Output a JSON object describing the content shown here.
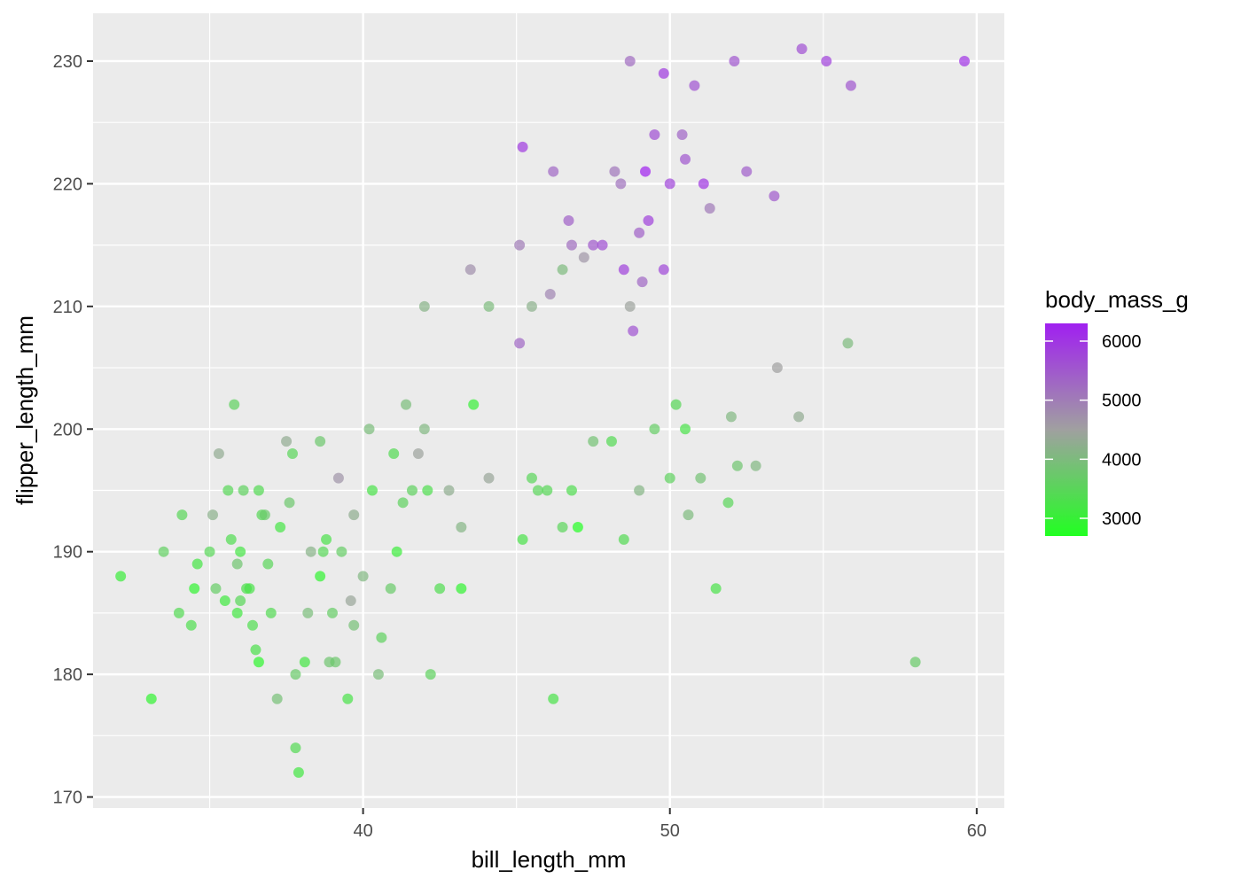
{
  "chart_data": {
    "type": "scatter",
    "xlabel": "bill_length_mm",
    "ylabel": "flipper_length_mm",
    "xlim": [
      31.2,
      60.9
    ],
    "ylim": [
      169.1,
      233.9
    ],
    "x_ticks": [
      40,
      50,
      60
    ],
    "y_ticks": [
      170,
      180,
      190,
      200,
      210,
      220,
      230
    ],
    "x_tick_labels": [
      "40",
      "50",
      "60"
    ],
    "y_tick_labels": [
      "170",
      "180",
      "190",
      "200",
      "210",
      "220",
      "230"
    ],
    "grid": true,
    "legend": {
      "title": "body_mass_g",
      "placement": "right",
      "type": "colorbar",
      "ticks": [
        3000,
        4000,
        5000,
        6000
      ],
      "tick_labels": [
        "3000",
        "4000",
        "5000",
        "6000"
      ],
      "range": [
        2700,
        6300
      ],
      "low_color": "#22ff22",
      "mid_color": "#a0a0a0",
      "high_color": "#a020f0"
    },
    "colors": {
      "panel_background": "#ebebeb",
      "grid": "#ffffff",
      "point_opacity": 0.7
    },
    "points": [
      [
        32.1,
        188,
        3050
      ],
      [
        33.1,
        178,
        2900
      ],
      [
        33.5,
        190,
        3600
      ],
      [
        34,
        185,
        3400
      ],
      [
        34.1,
        193,
        3475
      ],
      [
        34.4,
        184,
        3325
      ],
      [
        34.5,
        187,
        2900
      ],
      [
        34.6,
        189,
        3200
      ],
      [
        35,
        190,
        3450
      ],
      [
        35.1,
        193,
        4200
      ],
      [
        35.2,
        187,
        3650
      ],
      [
        35.3,
        198,
        4300
      ],
      [
        35.5,
        186,
        3100
      ],
      [
        35.6,
        195,
        3450
      ],
      [
        35.7,
        191,
        3350
      ],
      [
        35.8,
        202,
        3550
      ],
      [
        35.9,
        189,
        3800
      ],
      [
        35.9,
        185,
        3150
      ],
      [
        36,
        186,
        3450
      ],
      [
        36,
        190,
        3200
      ],
      [
        36.1,
        195,
        3550
      ],
      [
        36.2,
        187,
        3300
      ],
      [
        36.3,
        187,
        3250
      ],
      [
        36.4,
        184,
        3325
      ],
      [
        36.5,
        182,
        3300
      ],
      [
        36.6,
        181,
        2850
      ],
      [
        36.6,
        195,
        3400
      ],
      [
        36.7,
        193,
        3450
      ],
      [
        36.8,
        193,
        3700
      ],
      [
        36.9,
        189,
        3500
      ],
      [
        37,
        185,
        3400
      ],
      [
        37.2,
        178,
        3900
      ],
      [
        37.3,
        192,
        3200
      ],
      [
        37.5,
        199,
        4300
      ],
      [
        37.6,
        194,
        3750
      ],
      [
        37.7,
        198,
        3500
      ],
      [
        37.8,
        174,
        3400
      ],
      [
        37.8,
        180,
        3700
      ],
      [
        37.9,
        172,
        3150
      ],
      [
        38.1,
        181,
        3175
      ],
      [
        38.2,
        185,
        3950
      ],
      [
        38.3,
        190,
        4150
      ],
      [
        38.6,
        188,
        2900
      ],
      [
        38.6,
        199,
        3750
      ],
      [
        38.7,
        190,
        3450
      ],
      [
        38.8,
        191,
        3275
      ],
      [
        38.9,
        181,
        3800
      ],
      [
        39,
        185,
        3650
      ],
      [
        39.1,
        181,
        3750
      ],
      [
        39.2,
        196,
        4675
      ],
      [
        39.3,
        190,
        3650
      ],
      [
        39.5,
        178,
        3250
      ],
      [
        39.6,
        186,
        4400
      ],
      [
        39.7,
        184,
        3900
      ],
      [
        39.7,
        193,
        4250
      ],
      [
        40,
        188,
        4050
      ],
      [
        40.2,
        200,
        3975
      ],
      [
        40.3,
        195,
        3250
      ],
      [
        40.5,
        180,
        3950
      ],
      [
        40.6,
        183,
        3550
      ],
      [
        40.9,
        187,
        3700
      ],
      [
        41,
        198,
        3400
      ],
      [
        41.1,
        190,
        3050
      ],
      [
        41.3,
        194,
        3550
      ],
      [
        41.4,
        202,
        3950
      ],
      [
        41.6,
        195,
        3550
      ],
      [
        41.8,
        198,
        4450
      ],
      [
        42,
        200,
        4050
      ],
      [
        42.1,
        195,
        3325
      ],
      [
        42.2,
        180,
        3550
      ],
      [
        42.5,
        187,
        3350
      ],
      [
        42.8,
        195,
        4250
      ],
      [
        43.2,
        187,
        2900
      ],
      [
        43.6,
        202,
        3000
      ],
      [
        44.1,
        196,
        4400
      ],
      [
        45.2,
        191,
        3250
      ],
      [
        45.5,
        196,
        3500
      ],
      [
        45.7,
        195,
        3500
      ],
      [
        46,
        195,
        3450
      ],
      [
        46.2,
        178,
        3250
      ],
      [
        46.5,
        192,
        3500
      ],
      [
        46.8,
        195,
        3350
      ],
      [
        47,
        192,
        2700
      ],
      [
        47.5,
        199,
        3850
      ],
      [
        48.1,
        199,
        3400
      ],
      [
        48.5,
        191,
        3400
      ],
      [
        49,
        195,
        4100
      ],
      [
        49.5,
        200,
        3650
      ],
      [
        50,
        196,
        3550
      ],
      [
        50.2,
        202,
        3450
      ],
      [
        50.5,
        200,
        3250
      ],
      [
        50.6,
        193,
        4000
      ],
      [
        51,
        196,
        3850
      ],
      [
        51.5,
        187,
        3250
      ],
      [
        51.9,
        194,
        3500
      ],
      [
        52,
        201,
        4050
      ],
      [
        52.2,
        197,
        3800
      ],
      [
        52.8,
        197,
        4050
      ],
      [
        53.5,
        205,
        4500
      ],
      [
        54.2,
        201,
        4300
      ],
      [
        55.8,
        207,
        4000
      ],
      [
        58,
        181,
        3700
      ],
      [
        42,
        210,
        4150
      ],
      [
        43.2,
        192,
        4100
      ],
      [
        43.5,
        213,
        4750
      ],
      [
        44.1,
        210,
        4000
      ],
      [
        45.1,
        215,
        5000
      ],
      [
        45.5,
        210,
        4200
      ],
      [
        46.1,
        211,
        4900
      ],
      [
        46.2,
        221,
        5300
      ],
      [
        46.5,
        213,
        4000
      ],
      [
        46.8,
        215,
        5200
      ],
      [
        47.2,
        214,
        4650
      ],
      [
        47.5,
        215,
        5500
      ],
      [
        47.8,
        215,
        5650
      ],
      [
        48.2,
        221,
        5100
      ],
      [
        48.4,
        220,
        5150
      ],
      [
        48.7,
        210,
        4450
      ],
      [
        49,
        216,
        5400
      ],
      [
        49.1,
        212,
        5300
      ],
      [
        49.5,
        224,
        5650
      ],
      [
        49.8,
        229,
        5950
      ],
      [
        50,
        220,
        5800
      ],
      [
        50.5,
        222,
        5550
      ],
      [
        50.8,
        228,
        5600
      ],
      [
        51.1,
        220,
        6000
      ],
      [
        51.3,
        218,
        5050
      ],
      [
        52.1,
        230,
        5550
      ],
      [
        53.4,
        219,
        5500
      ],
      [
        54.3,
        231,
        5650
      ],
      [
        55.1,
        230,
        5850
      ],
      [
        55.9,
        228,
        5550
      ],
      [
        59.6,
        230,
        6050
      ],
      [
        45.2,
        223,
        5950
      ],
      [
        48.7,
        230,
        5250
      ],
      [
        49.2,
        221,
        6300
      ],
      [
        50.4,
        224,
        5350
      ],
      [
        52.5,
        221,
        5450
      ],
      [
        49.3,
        217,
        5850
      ],
      [
        46.7,
        217,
        5400
      ],
      [
        48.5,
        213,
        5850
      ],
      [
        48.8,
        208,
        5600
      ],
      [
        49.8,
        213,
        5750
      ],
      [
        45.1,
        207,
        5300
      ]
    ]
  }
}
